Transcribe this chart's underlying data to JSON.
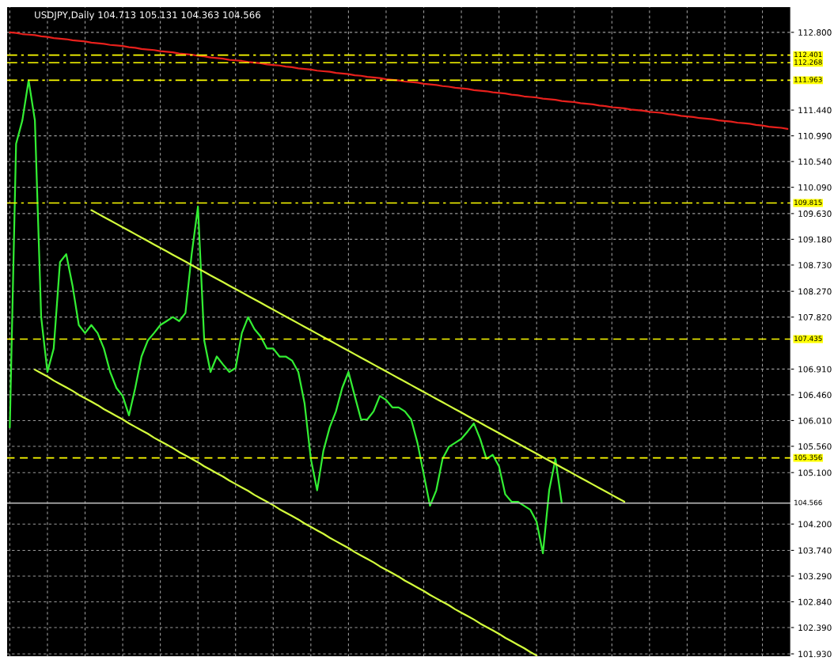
{
  "chart_data": {
    "type": "line",
    "title": "USDJPY,Daily 104.713 105.131 104.363 104.566",
    "categories": [
      null,
      null,
      null,
      null,
      null,
      null,
      null,
      null,
      null,
      null,
      null,
      null,
      null,
      null,
      null,
      null,
      null,
      null,
      null,
      null,
      null,
      null,
      null,
      null,
      null,
      null,
      null,
      null,
      null,
      null,
      null,
      null,
      null,
      null,
      null,
      null,
      null,
      null,
      null,
      null,
      null,
      null,
      null,
      null,
      null,
      null,
      null,
      null,
      null,
      null,
      null,
      null,
      null,
      null,
      null,
      null,
      null,
      null,
      null,
      null,
      null,
      null,
      null,
      null,
      null,
      null,
      null,
      null,
      null,
      null,
      null,
      null,
      null,
      null,
      null,
      null,
      null,
      null,
      null,
      null,
      null,
      null,
      null,
      null,
      null,
      null,
      null,
      null,
      null,
      null,
      null,
      null,
      null,
      null,
      null,
      null,
      null,
      null,
      null,
      null,
      null,
      null,
      null,
      null,
      null,
      null,
      null,
      null,
      null,
      null,
      null,
      null,
      null,
      null,
      null,
      null,
      null,
      null,
      null,
      null,
      null,
      null,
      null,
      null,
      null
    ],
    "series": [
      {
        "color": "#33ee33",
        "values": [
          105.89,
          110.85,
          111.26,
          111.96,
          111.26,
          107.82,
          106.86,
          107.27,
          108.78,
          108.92,
          108.37,
          107.68,
          107.54,
          107.68,
          107.54,
          107.27,
          106.86,
          106.58,
          106.44,
          106.1,
          106.58,
          107.13,
          107.41,
          107.54,
          107.68,
          107.75,
          107.82,
          107.75,
          107.89,
          108.92,
          109.75,
          107.41,
          106.86,
          107.13,
          106.99,
          106.86,
          106.93,
          107.54,
          107.82,
          107.61,
          107.48,
          107.27,
          107.27,
          107.13,
          107.13,
          107.06,
          106.86,
          106.31,
          105.34,
          104.79,
          105.48,
          105.89,
          106.17,
          106.58,
          106.86,
          106.44,
          106.03,
          106.03,
          106.17,
          106.44,
          106.37,
          106.24,
          106.24,
          106.17,
          106.03,
          105.62,
          105.07,
          104.52,
          104.79,
          105.34,
          105.55,
          105.62,
          105.69,
          105.82,
          105.96,
          105.69,
          105.34,
          105.41,
          105.21,
          104.72,
          104.59,
          104.59,
          104.52,
          104.45,
          104.24,
          103.69,
          104.79,
          105.34,
          104.57,
          null,
          null,
          null,
          null,
          null,
          null,
          null,
          null,
          null,
          null,
          null,
          null,
          null,
          null,
          null,
          null,
          null,
          null,
          null,
          null,
          null,
          null,
          null,
          null,
          null,
          null,
          null,
          null,
          null,
          null,
          null,
          null,
          null,
          null,
          null,
          null
        ]
      },
      {
        "color": "#e8201c",
        "values": [
          112.8,
          112.79,
          112.77,
          112.76,
          112.75,
          112.73,
          112.72,
          112.7,
          112.69,
          112.68,
          112.66,
          112.65,
          112.64,
          112.62,
          112.61,
          112.6,
          112.58,
          112.57,
          112.56,
          112.54,
          112.53,
          112.51,
          112.5,
          112.49,
          112.47,
          112.46,
          112.45,
          112.43,
          112.42,
          112.41,
          112.39,
          112.38,
          112.36,
          112.35,
          112.34,
          112.32,
          112.31,
          112.3,
          112.28,
          112.27,
          112.26,
          112.24,
          112.23,
          112.22,
          112.2,
          112.19,
          112.17,
          112.16,
          112.15,
          112.13,
          112.12,
          112.11,
          112.09,
          112.08,
          112.07,
          112.05,
          112.04,
          112.02,
          112.01,
          112.0,
          111.98,
          111.97,
          111.96,
          111.94,
          111.93,
          111.92,
          111.9,
          111.89,
          111.88,
          111.86,
          111.85,
          111.83,
          111.82,
          111.81,
          111.79,
          111.78,
          111.77,
          111.75,
          111.74,
          111.73,
          111.71,
          111.7,
          111.68,
          111.67,
          111.66,
          111.64,
          111.63,
          111.62,
          111.6,
          111.59,
          111.58,
          111.56,
          111.55,
          111.54,
          111.52,
          111.51,
          111.49,
          111.48,
          111.47,
          111.45,
          111.44,
          111.43,
          111.41,
          111.4,
          111.39,
          111.37,
          111.36,
          111.34,
          111.33,
          111.32,
          111.3,
          111.29,
          111.28,
          111.26,
          111.25,
          111.24,
          111.22,
          111.21,
          111.2,
          111.18,
          111.17,
          111.15,
          111.14,
          111.13,
          111.11
        ]
      },
      {
        "color": "#d4ff3c",
        "values": [
          null,
          null,
          null,
          null,
          null,
          null,
          null,
          null,
          null,
          null,
          null,
          null,
          null,
          109.69,
          109.63,
          109.57,
          109.51,
          109.45,
          109.39,
          109.33,
          109.27,
          109.21,
          109.15,
          109.09,
          109.03,
          108.97,
          108.91,
          108.85,
          108.79,
          108.73,
          108.67,
          108.61,
          108.55,
          108.49,
          108.43,
          108.37,
          108.31,
          108.25,
          108.19,
          108.13,
          108.07,
          108.01,
          107.95,
          107.89,
          107.83,
          107.77,
          107.71,
          107.65,
          107.59,
          107.53,
          107.47,
          107.41,
          107.35,
          107.29,
          107.23,
          107.17,
          107.11,
          107.05,
          106.99,
          106.93,
          106.87,
          106.81,
          106.75,
          106.69,
          106.63,
          106.57,
          106.51,
          106.45,
          106.39,
          106.33,
          106.27,
          106.21,
          106.15,
          106.09,
          106.03,
          105.97,
          105.91,
          105.85,
          105.79,
          105.73,
          105.67,
          105.61,
          105.55,
          105.49,
          105.43,
          105.37,
          105.31,
          105.25,
          105.19,
          105.13,
          105.07,
          105.01,
          104.95,
          104.89,
          104.83,
          104.77,
          104.71,
          104.65,
          104.59,
          null,
          null,
          null,
          null,
          null,
          null,
          null,
          null,
          null,
          null,
          null,
          null,
          null,
          null,
          null,
          null,
          null,
          null,
          null,
          null,
          null,
          null,
          null,
          null,
          null,
          null
        ]
      },
      {
        "color": "#d4ff3c",
        "values": [
          null,
          null,
          null,
          null,
          106.9,
          106.84,
          106.78,
          106.71,
          106.65,
          106.59,
          106.53,
          106.46,
          106.4,
          106.34,
          106.28,
          106.21,
          106.15,
          106.09,
          106.03,
          105.96,
          105.9,
          105.84,
          105.78,
          105.71,
          105.65,
          105.59,
          105.53,
          105.46,
          105.4,
          105.34,
          105.28,
          105.21,
          105.15,
          105.09,
          105.03,
          104.96,
          104.9,
          104.84,
          104.78,
          104.71,
          104.65,
          104.59,
          104.53,
          104.46,
          104.4,
          104.34,
          104.28,
          104.21,
          104.15,
          104.09,
          104.03,
          103.96,
          103.9,
          103.84,
          103.78,
          103.71,
          103.65,
          103.59,
          103.53,
          103.46,
          103.4,
          103.34,
          103.28,
          103.21,
          103.15,
          103.09,
          103.03,
          102.96,
          102.9,
          102.84,
          102.78,
          102.71,
          102.65,
          102.59,
          102.53,
          102.46,
          102.4,
          102.34,
          102.28,
          102.21,
          102.15,
          102.09,
          102.03,
          101.96,
          101.9,
          null,
          null,
          null,
          null,
          null,
          null,
          null,
          null,
          null,
          null,
          null,
          null,
          null,
          null,
          null,
          null,
          null,
          null,
          null,
          null,
          null,
          null,
          null,
          null,
          null,
          null,
          null,
          null,
          null,
          null,
          null,
          null,
          null,
          null,
          null,
          null,
          null,
          null,
          null,
          null
        ]
      }
    ],
    "ylim": [
      101.88,
      113.25
    ],
    "yticks": [
      {
        "value": 112.8,
        "label": "112.800"
      },
      {
        "value": 111.44,
        "label": "111.440"
      },
      {
        "value": 110.99,
        "label": "110.990"
      },
      {
        "value": 110.54,
        "label": "110.540"
      },
      {
        "value": 110.09,
        "label": "110.090"
      },
      {
        "value": 109.63,
        "label": "109.630"
      },
      {
        "value": 109.18,
        "label": "109.180"
      },
      {
        "value": 108.73,
        "label": "108.730"
      },
      {
        "value": 108.27,
        "label": "108.270"
      },
      {
        "value": 107.82,
        "label": "107.820"
      },
      {
        "value": 106.91,
        "label": "106.910"
      },
      {
        "value": 106.46,
        "label": "106.460"
      },
      {
        "value": 106.01,
        "label": "106.010"
      },
      {
        "value": 105.56,
        "label": "105.560"
      },
      {
        "value": 105.1,
        "label": "105.100"
      },
      {
        "value": 104.2,
        "label": "104.200"
      },
      {
        "value": 103.74,
        "label": "103.740"
      },
      {
        "value": 103.29,
        "label": "103.290"
      },
      {
        "value": 102.84,
        "label": "102.840"
      },
      {
        "value": 102.39,
        "label": "102.390"
      },
      {
        "value": 101.93,
        "label": "101.930"
      }
    ],
    "ref_lines": [
      {
        "axis": "y",
        "value": 112.401,
        "label": "112.401",
        "color": "#ffff00",
        "line_style": "dashdot"
      },
      {
        "axis": "y",
        "value": 112.268,
        "label": "112.268",
        "color": "#ffff00",
        "line_style": "dashdot"
      },
      {
        "axis": "y",
        "value": 111.963,
        "label": "111.963",
        "color": "#ffff00",
        "line_style": "dashdot"
      },
      {
        "axis": "y",
        "value": 109.815,
        "label": "109.815",
        "color": "#ffff00",
        "line_style": "dashdot"
      },
      {
        "axis": "y",
        "value": 107.435,
        "label": "107.435",
        "color": "#ffff00",
        "line_style": "dashed"
      },
      {
        "axis": "y",
        "value": 105.356,
        "label": "105.356",
        "color": "#ffff00",
        "line_style": "dashed"
      },
      {
        "axis": "y",
        "value": 104.566,
        "label": "104.566",
        "color": "#c0c0c0",
        "line_style": "solid"
      }
    ],
    "grid": true,
    "tick_labels": "y"
  }
}
